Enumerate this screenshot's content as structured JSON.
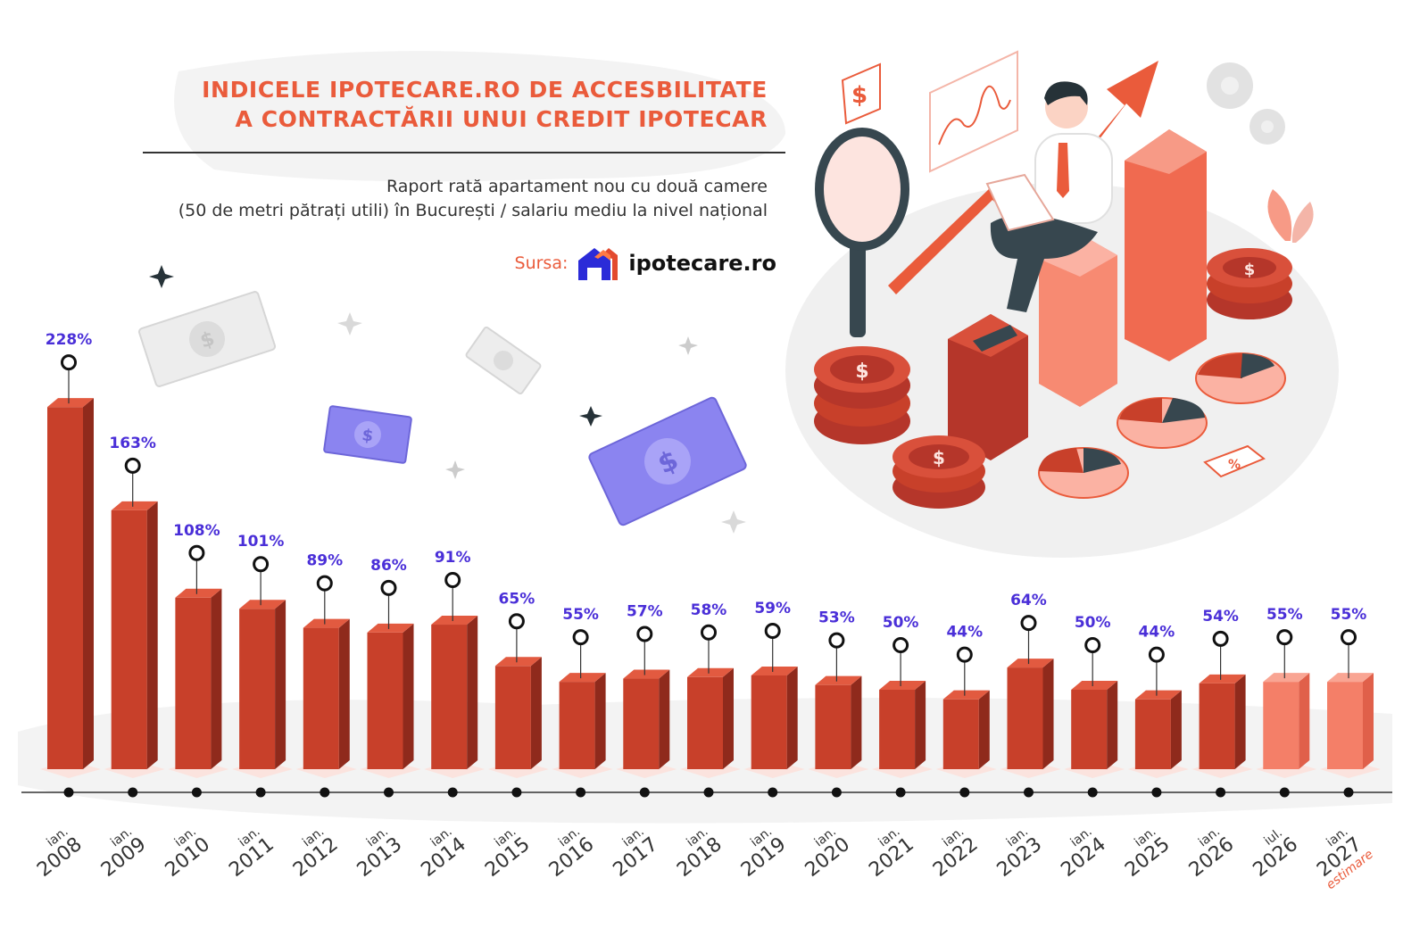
{
  "header": {
    "title_line1": "INDICELE IPOTECARE.RO DE ACCESBILITATE",
    "title_line2": "A CONTRACTĂRII UNUI CREDIT IPOTECAR",
    "subtitle_line1": "Raport rată apartament nou cu două camere",
    "subtitle_line2": "(50 de metri pătrați utili) în București / salariu mediu la nivel național",
    "source_label": "Sursa:",
    "brand_name": "ipotecare.ro"
  },
  "colors": {
    "bar_front": "#c8402a",
    "bar_side": "#8f2a1c",
    "bar_top": "#e25a40",
    "bar_light": "#f47f68",
    "label": "#4a2fd8",
    "accent": "#ea5b3b"
  },
  "chart_data": {
    "type": "bar",
    "title": "",
    "xlabel": "",
    "ylabel": "",
    "ylim": [
      0,
      240
    ],
    "categories": [
      {
        "month": "ian.",
        "year": "2008"
      },
      {
        "month": "ian.",
        "year": "2009"
      },
      {
        "month": "ian.",
        "year": "2010"
      },
      {
        "month": "ian.",
        "year": "2011"
      },
      {
        "month": "ian.",
        "year": "2012"
      },
      {
        "month": "ian.",
        "year": "2013"
      },
      {
        "month": "ian.",
        "year": "2014"
      },
      {
        "month": "ian.",
        "year": "2015"
      },
      {
        "month": "ian.",
        "year": "2016"
      },
      {
        "month": "ian.",
        "year": "2017"
      },
      {
        "month": "ian.",
        "year": "2018"
      },
      {
        "month": "ian.",
        "year": "2019"
      },
      {
        "month": "ian.",
        "year": "2020"
      },
      {
        "month": "ian.",
        "year": "2021"
      },
      {
        "month": "ian.",
        "year": "2022"
      },
      {
        "month": "ian.",
        "year": "2023"
      },
      {
        "month": "ian.",
        "year": "2024"
      },
      {
        "month": "ian.",
        "year": "2025"
      },
      {
        "month": "ian.",
        "year": "2026"
      },
      {
        "month": "iul.",
        "year": "2026"
      },
      {
        "month": "ian.",
        "year": "2027"
      }
    ],
    "values": [
      228,
      163,
      108,
      101,
      89,
      86,
      91,
      65,
      55,
      57,
      58,
      59,
      53,
      50,
      44,
      64,
      50,
      44,
      54,
      55,
      55
    ],
    "data_labels": [
      "228%",
      "163%",
      "108%",
      "101%",
      "89%",
      "86%",
      "91%",
      "65%",
      "55%",
      "57%",
      "58%",
      "59%",
      "53%",
      "50%",
      "44%",
      "64%",
      "50%",
      "44%",
      "54%",
      "55%",
      "55%"
    ],
    "highlighted": [
      false,
      false,
      false,
      false,
      false,
      false,
      false,
      false,
      false,
      false,
      false,
      false,
      false,
      false,
      false,
      false,
      false,
      false,
      false,
      true,
      true
    ],
    "estimate_note": "estimare",
    "grid": false,
    "legend": "none"
  }
}
